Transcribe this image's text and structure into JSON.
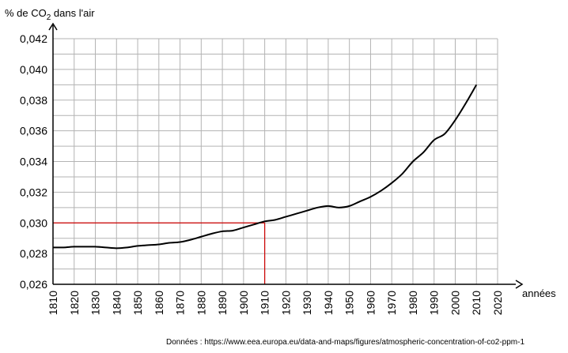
{
  "chart_data": {
    "type": "line",
    "ylabel": {
      "prefix": "% de CO",
      "subscript": "2",
      "suffix": " dans l'air"
    },
    "xlabel": "années",
    "xlim": [
      1810,
      2020
    ],
    "ylim": [
      0.026,
      0.042
    ],
    "x_ticks": [
      "1810",
      "1820",
      "1830",
      "1840",
      "1850",
      "1860",
      "1870",
      "1880",
      "1890",
      "1900",
      "1910",
      "1920",
      "1930",
      "1940",
      "1950",
      "1960",
      "1970",
      "1980",
      "1990",
      "2000",
      "2010",
      "2020"
    ],
    "y_ticks": [
      "0,026",
      "0,028",
      "0,030",
      "0,032",
      "0,034",
      "0,036",
      "0,038",
      "0,040",
      "0,042"
    ],
    "grid": true,
    "series": [
      {
        "color": "#000000",
        "x": [
          1810,
          1815,
          1820,
          1825,
          1830,
          1835,
          1840,
          1845,
          1850,
          1855,
          1860,
          1865,
          1870,
          1875,
          1880,
          1885,
          1890,
          1895,
          1900,
          1905,
          1910,
          1915,
          1920,
          1925,
          1930,
          1935,
          1940,
          1945,
          1950,
          1955,
          1960,
          1965,
          1970,
          1975,
          1980,
          1985,
          1990,
          1995,
          2000,
          2005,
          2010
        ],
        "y": [
          0.0284,
          0.0284,
          0.02845,
          0.02845,
          0.02845,
          0.0284,
          0.02835,
          0.0284,
          0.0285,
          0.02855,
          0.0286,
          0.0287,
          0.02875,
          0.0289,
          0.0291,
          0.0293,
          0.02945,
          0.0295,
          0.0297,
          0.0299,
          0.0301,
          0.0302,
          0.0304,
          0.0306,
          0.0308,
          0.031,
          0.0311,
          0.031,
          0.0311,
          0.0314,
          0.0317,
          0.0321,
          0.0326,
          0.0332,
          0.034,
          0.0346,
          0.0354,
          0.0358,
          0.0367,
          0.0378,
          0.039
        ]
      }
    ],
    "annotation": {
      "x": 1910,
      "y": 0.03,
      "color": "#cc0000"
    }
  },
  "source": "Données : https://www.eea.europa.eu/data-and-maps/figures/atmospheric-concentration-of-co2-ppm-1"
}
